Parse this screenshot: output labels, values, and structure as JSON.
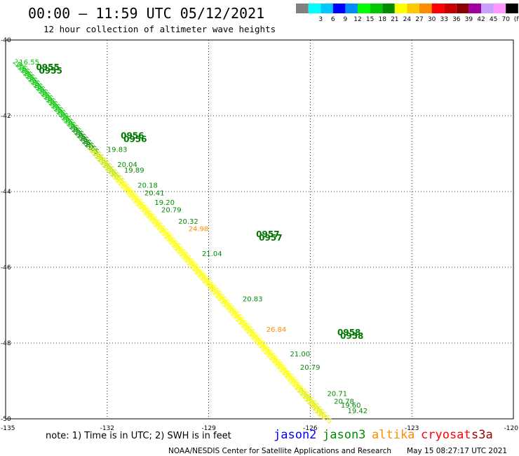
{
  "header": {
    "title": "00:00 – 11:59 UTC 05/12/2021",
    "subtitle": "12 hour collection of altimeter wave heights"
  },
  "legend": {
    "unit": "(ft)",
    "bins": [
      {
        "label": "",
        "color": "#808080"
      },
      {
        "label": "3",
        "color": "#00ffff"
      },
      {
        "label": "6",
        "color": "#00c8ff"
      },
      {
        "label": "9",
        "color": "#0000ff"
      },
      {
        "label": "12",
        "color": "#008cff"
      },
      {
        "label": "15",
        "color": "#00ff00"
      },
      {
        "label": "18",
        "color": "#00c800"
      },
      {
        "label": "21",
        "color": "#008c00"
      },
      {
        "label": "24",
        "color": "#ffff00"
      },
      {
        "label": "27",
        "color": "#ffc800"
      },
      {
        "label": "30",
        "color": "#ff8c00"
      },
      {
        "label": "33",
        "color": "#ff0000"
      },
      {
        "label": "36",
        "color": "#c80000"
      },
      {
        "label": "39",
        "color": "#8c0000"
      },
      {
        "label": "42",
        "color": "#a000a0"
      },
      {
        "label": "45",
        "color": "#c8a0ff"
      },
      {
        "label": "70",
        "color": "#ff96ff"
      },
      {
        "label": "",
        "color": "#000000"
      }
    ]
  },
  "map": {
    "lon_range": [
      -135,
      -120
    ],
    "lat_range": [
      -50,
      -40
    ],
    "lat_ticks": [
      "-40",
      "-42",
      "-44",
      "-46",
      "-48",
      "-50"
    ],
    "lon_ticks": [
      "-135",
      "-132",
      "-129",
      "-126",
      "-123",
      "-120"
    ],
    "grid_lons": [
      -132,
      -129,
      -126,
      -123
    ],
    "grid_lats": [
      -42,
      -44,
      -46,
      -48
    ],
    "track": {
      "start": {
        "lon": -134.8,
        "lat": -40.6
      },
      "end": {
        "lon": -125.8,
        "lat": -49.9
      }
    },
    "time_labels": [
      {
        "text": "0955",
        "lon": -134.1,
        "lat": -40.8,
        "color": "#007800"
      },
      {
        "text": "0956",
        "lon": -131.6,
        "lat": -42.6,
        "color": "#007800"
      },
      {
        "text": "0957",
        "lon": -127.6,
        "lat": -45.2,
        "color": "#007800"
      },
      {
        "text": "0958",
        "lon": -125.2,
        "lat": -47.8,
        "color": "#007800"
      }
    ],
    "values": [
      {
        "text": "16.55",
        "lon": -134.6,
        "lat": -40.65,
        "color": "#00c800"
      },
      {
        "text": "19.83",
        "lon": -132.0,
        "lat": -42.95,
        "color": "#008c00"
      },
      {
        "text": "20.04",
        "lon": -131.7,
        "lat": -43.35,
        "color": "#008c00"
      },
      {
        "text": "19.89",
        "lon": -131.5,
        "lat": -43.5,
        "color": "#008c00"
      },
      {
        "text": "20.18",
        "lon": -131.1,
        "lat": -43.9,
        "color": "#008c00"
      },
      {
        "text": "20.41",
        "lon": -130.9,
        "lat": -44.1,
        "color": "#008c00"
      },
      {
        "text": "19.20",
        "lon": -130.6,
        "lat": -44.35,
        "color": "#008c00"
      },
      {
        "text": "20.79",
        "lon": -130.4,
        "lat": -44.55,
        "color": "#008c00"
      },
      {
        "text": "20.32",
        "lon": -129.9,
        "lat": -44.85,
        "color": "#008c00"
      },
      {
        "text": "24.98",
        "lon": -129.6,
        "lat": -45.05,
        "color": "#ff8c00"
      },
      {
        "text": "21.04",
        "lon": -129.2,
        "lat": -45.7,
        "color": "#008c00"
      },
      {
        "text": "20.83",
        "lon": -128.0,
        "lat": -46.9,
        "color": "#008c00"
      },
      {
        "text": "26.84",
        "lon": -127.3,
        "lat": -47.7,
        "color": "#ff8c00"
      },
      {
        "text": "21.00",
        "lon": -126.6,
        "lat": -48.35,
        "color": "#008c00"
      },
      {
        "text": "20.79",
        "lon": -126.3,
        "lat": -48.7,
        "color": "#008c00"
      },
      {
        "text": "20.71",
        "lon": -125.5,
        "lat": -49.4,
        "color": "#008c00"
      },
      {
        "text": "20.78",
        "lon": -125.3,
        "lat": -49.6,
        "color": "#008c00"
      },
      {
        "text": "19.60",
        "lon": -125.1,
        "lat": -49.7,
        "color": "#008c00"
      },
      {
        "text": "19.42",
        "lon": -124.9,
        "lat": -49.85,
        "color": "#008c00"
      }
    ]
  },
  "footer": {
    "note": "note: 1) Time is in UTC; 2) SWH is in feet",
    "satellites": [
      {
        "name": "jason2",
        "color": "#0000ff"
      },
      {
        "name": "jason3",
        "color": "#008c00"
      },
      {
        "name": "altika",
        "color": "#ff8c00"
      },
      {
        "name": "cryosat",
        "color": "#ff0000"
      },
      {
        "name": "s3a",
        "color": "#a00000"
      }
    ],
    "credit": "NOAA/NESDIS Center for Satellite Applications and Research",
    "timestamp": "May 15 08:27:17 UTC 2021"
  }
}
